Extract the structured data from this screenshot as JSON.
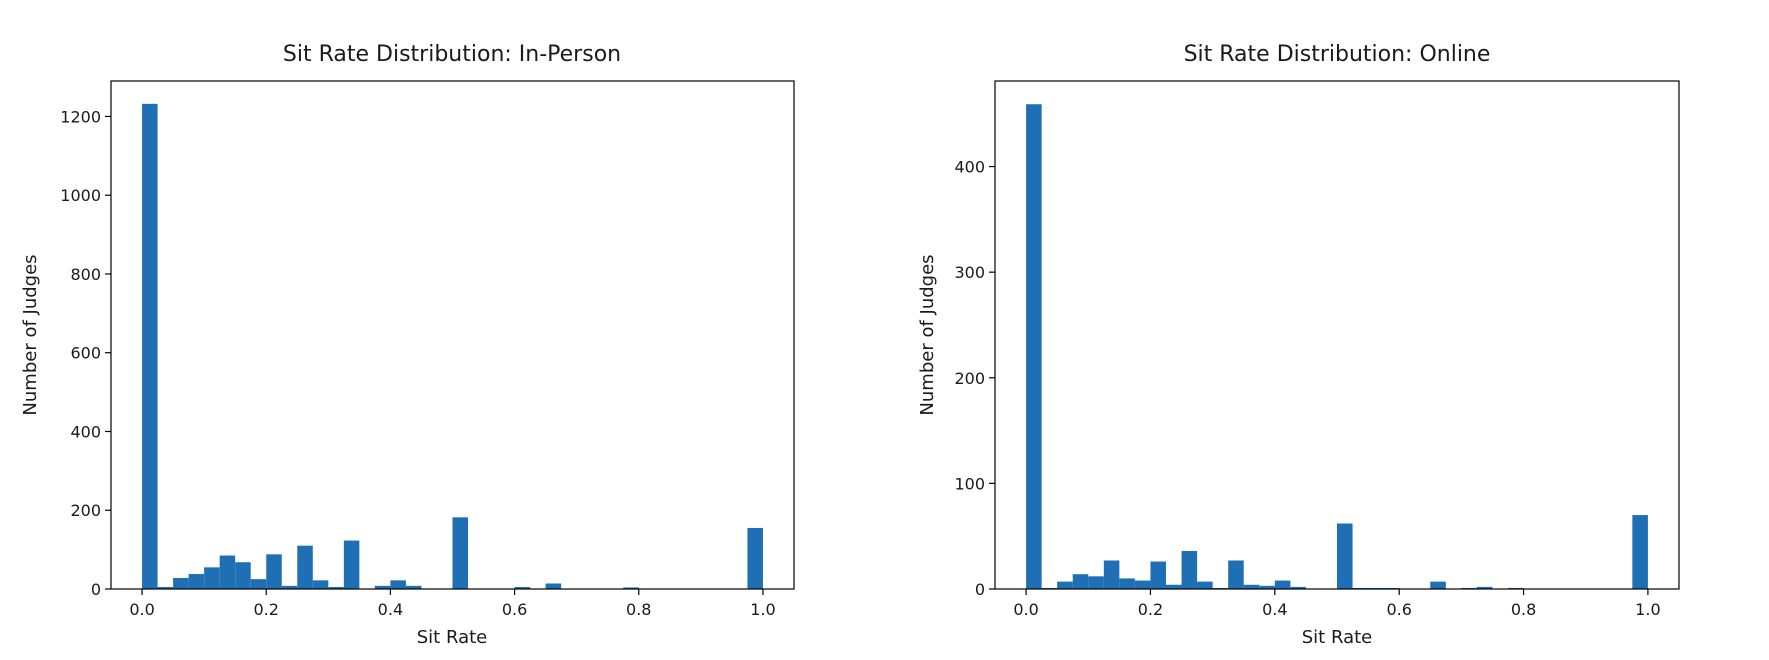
{
  "colors": {
    "bar": "#1f6fb5",
    "axis": "#000000",
    "text": "#1a1a1a"
  },
  "chart_data": [
    {
      "type": "bar",
      "title": "Sit Rate Distribution: In-Person",
      "xlabel": "Sit Rate",
      "ylabel": "Number of Judges",
      "xlim": [
        -0.05,
        1.05
      ],
      "ylim": [
        0,
        1290
      ],
      "xticks": [
        "0.0",
        "0.2",
        "0.4",
        "0.6",
        "0.8",
        "1.0"
      ],
      "xtick_values": [
        0.0,
        0.2,
        0.4,
        0.6,
        0.8,
        1.0
      ],
      "yticks": [
        "0",
        "200",
        "400",
        "600",
        "800",
        "1000",
        "1200"
      ],
      "ytick_values": [
        0,
        200,
        400,
        600,
        800,
        1000,
        1200
      ],
      "bin_width": 0.025,
      "bin_starts": [
        0.0,
        0.025,
        0.05,
        0.075,
        0.1,
        0.125,
        0.15,
        0.175,
        0.2,
        0.225,
        0.25,
        0.275,
        0.3,
        0.325,
        0.35,
        0.375,
        0.4,
        0.425,
        0.45,
        0.475,
        0.5,
        0.525,
        0.55,
        0.575,
        0.6,
        0.625,
        0.65,
        0.675,
        0.7,
        0.725,
        0.75,
        0.775,
        0.8,
        0.825,
        0.85,
        0.875,
        0.9,
        0.925,
        0.95,
        0.975
      ],
      "values": [
        1232,
        5,
        28,
        38,
        55,
        85,
        68,
        25,
        88,
        8,
        110,
        22,
        5,
        123,
        0,
        8,
        22,
        8,
        0,
        0,
        182,
        0,
        0,
        0,
        5,
        0,
        14,
        0,
        0,
        0,
        0,
        4,
        0,
        0,
        0,
        0,
        0,
        0,
        0,
        155
      ]
    },
    {
      "type": "bar",
      "title": "Sit Rate Distribution: Online",
      "xlabel": "Sit Rate",
      "ylabel": "Number of Judges",
      "xlim": [
        -0.05,
        1.05
      ],
      "ylim": [
        0,
        481
      ],
      "xticks": [
        "0.0",
        "0.2",
        "0.4",
        "0.6",
        "0.8",
        "1.0"
      ],
      "xtick_values": [
        0.0,
        0.2,
        0.4,
        0.6,
        0.8,
        1.0
      ],
      "yticks": [
        "0",
        "100",
        "200",
        "300",
        "400"
      ],
      "ytick_values": [
        0,
        100,
        200,
        300,
        400
      ],
      "bin_width": 0.025,
      "bin_starts": [
        0.0,
        0.025,
        0.05,
        0.075,
        0.1,
        0.125,
        0.15,
        0.175,
        0.2,
        0.225,
        0.25,
        0.275,
        0.3,
        0.325,
        0.35,
        0.375,
        0.4,
        0.425,
        0.45,
        0.475,
        0.5,
        0.525,
        0.55,
        0.575,
        0.6,
        0.625,
        0.65,
        0.675,
        0.7,
        0.725,
        0.75,
        0.775,
        0.8,
        0.825,
        0.85,
        0.875,
        0.9,
        0.925,
        0.95,
        0.975
      ],
      "values": [
        459,
        1,
        7,
        14,
        12,
        27,
        10,
        8,
        26,
        4,
        36,
        7,
        1,
        27,
        4,
        3,
        8,
        2,
        0,
        0,
        62,
        1,
        1,
        1,
        0,
        0,
        7,
        0,
        1,
        2,
        0,
        1,
        0,
        0,
        0,
        0,
        0,
        0,
        0,
        70
      ]
    }
  ]
}
